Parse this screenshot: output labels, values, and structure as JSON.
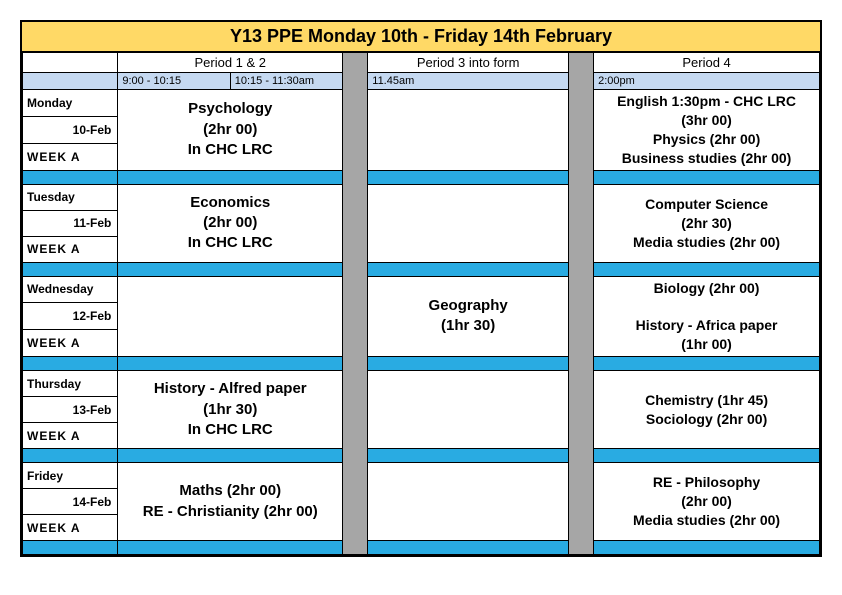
{
  "colors": {
    "title_bg": "#ffd966",
    "time_bg": "#c5d9f1",
    "blue_sep": "#29abe2",
    "gray_gap": "#a6a6a6"
  },
  "title": "Y13 PPE Monday 10th  - Friday 14th February",
  "periods": {
    "p12": "Period 1 & 2",
    "p3": "Period 3 into form",
    "p4": "Period 4"
  },
  "times": {
    "t1": "9:00 - 10:15",
    "t2": "10:15 - 11:30am",
    "t3": "11.45am",
    "t4": "2:00pm"
  },
  "days": {
    "mon": {
      "name": "Monday",
      "date": "10-Feb",
      "week": "WEEK   A",
      "p12": "Psychology<br>(2hr 00)<br>In CHC LRC",
      "p3": "",
      "p4": "English 1:30pm - CHC LRC<br>(3hr 00)<br>Physics (2hr 00)<br>Business studies (2hr 00)"
    },
    "tue": {
      "name": "Tuesday",
      "date": "11-Feb",
      "week": "WEEK   A",
      "p12": "Economics<br>(2hr 00)<br>In CHC LRC",
      "p3": "",
      "p4": "Computer Science<br>(2hr 30)<br>Media studies (2hr 00)"
    },
    "wed": {
      "name": "Wednesday",
      "date": "12-Feb",
      "week": "WEEK   A",
      "p12": "",
      "p3": "Geography<br>(1hr 30)",
      "p4": "Biology (2hr 00)<br><br>History - Africa paper<br>(1hr 00)"
    },
    "thu": {
      "name": "Thursday",
      "date": "13-Feb",
      "week": "WEEK   A",
      "p12": "History - Alfred paper<br>(1hr 30)<br>In CHC LRC",
      "p3": "",
      "p4": "Chemistry (1hr 45)<br>Sociology (2hr 00)"
    },
    "fri": {
      "name": "Fridey",
      "date": "14-Feb",
      "week": "WEEK   A",
      "p12": "Maths (2hr 00)<br>RE - Christianity (2hr 00)",
      "p3": "",
      "p4": "RE - Philosophy<br>(2hr 00)<br>Media studies (2hr 00)"
    }
  }
}
